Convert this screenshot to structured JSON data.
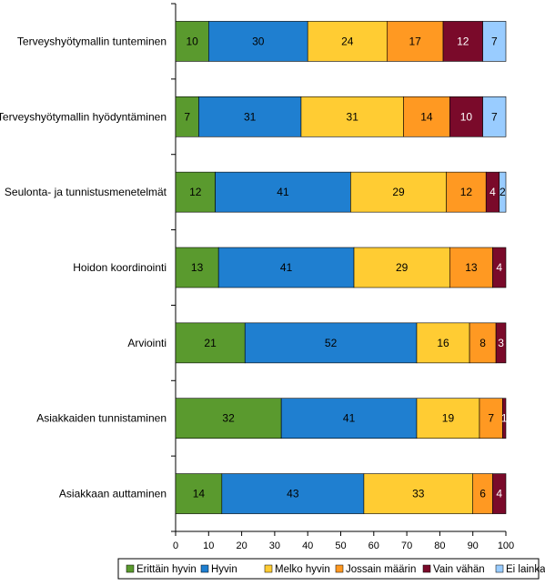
{
  "chart_data": {
    "type": "bar",
    "orientation": "horizontal",
    "stacked": true,
    "title": "",
    "xlabel": "",
    "ylabel": "",
    "xlim": [
      0,
      100
    ],
    "x_ticks": [
      0,
      10,
      20,
      30,
      40,
      50,
      60,
      70,
      80,
      90,
      100
    ],
    "grid": false,
    "legend_position": "bottom",
    "categories": [
      "Terveyshyötymallin tunteminen",
      "Terveyshyötymallin hyödyntäminen",
      "Seulonta- ja tunnistusmenetelmät",
      "Hoidon koordinointi",
      "Arviointi",
      "Asiakkaiden tunnistaminen",
      "Asiakkaan auttaminen"
    ],
    "series": [
      {
        "name": "Erittäin hyvin",
        "color": "#5a9a2e",
        "values": [
          10,
          7,
          12,
          13,
          21,
          32,
          14
        ]
      },
      {
        "name": "Hyvin",
        "color": "#1f7fd0",
        "values": [
          30,
          31,
          41,
          41,
          52,
          41,
          43
        ]
      },
      {
        "name": "Melko hyvin",
        "color": "#ffcc33",
        "values": [
          24,
          31,
          29,
          29,
          16,
          19,
          33
        ]
      },
      {
        "name": "Jossain määrin",
        "color": "#ff9922",
        "values": [
          17,
          14,
          12,
          13,
          8,
          7,
          6
        ]
      },
      {
        "name": "Vain vähän",
        "color": "#7a0a2a",
        "values": [
          12,
          10,
          4,
          4,
          3,
          1,
          4
        ]
      },
      {
        "name": "Ei lainkaan",
        "color": "#99ccff",
        "values": [
          7,
          7,
          2,
          0,
          0,
          0,
          0
        ]
      }
    ]
  }
}
